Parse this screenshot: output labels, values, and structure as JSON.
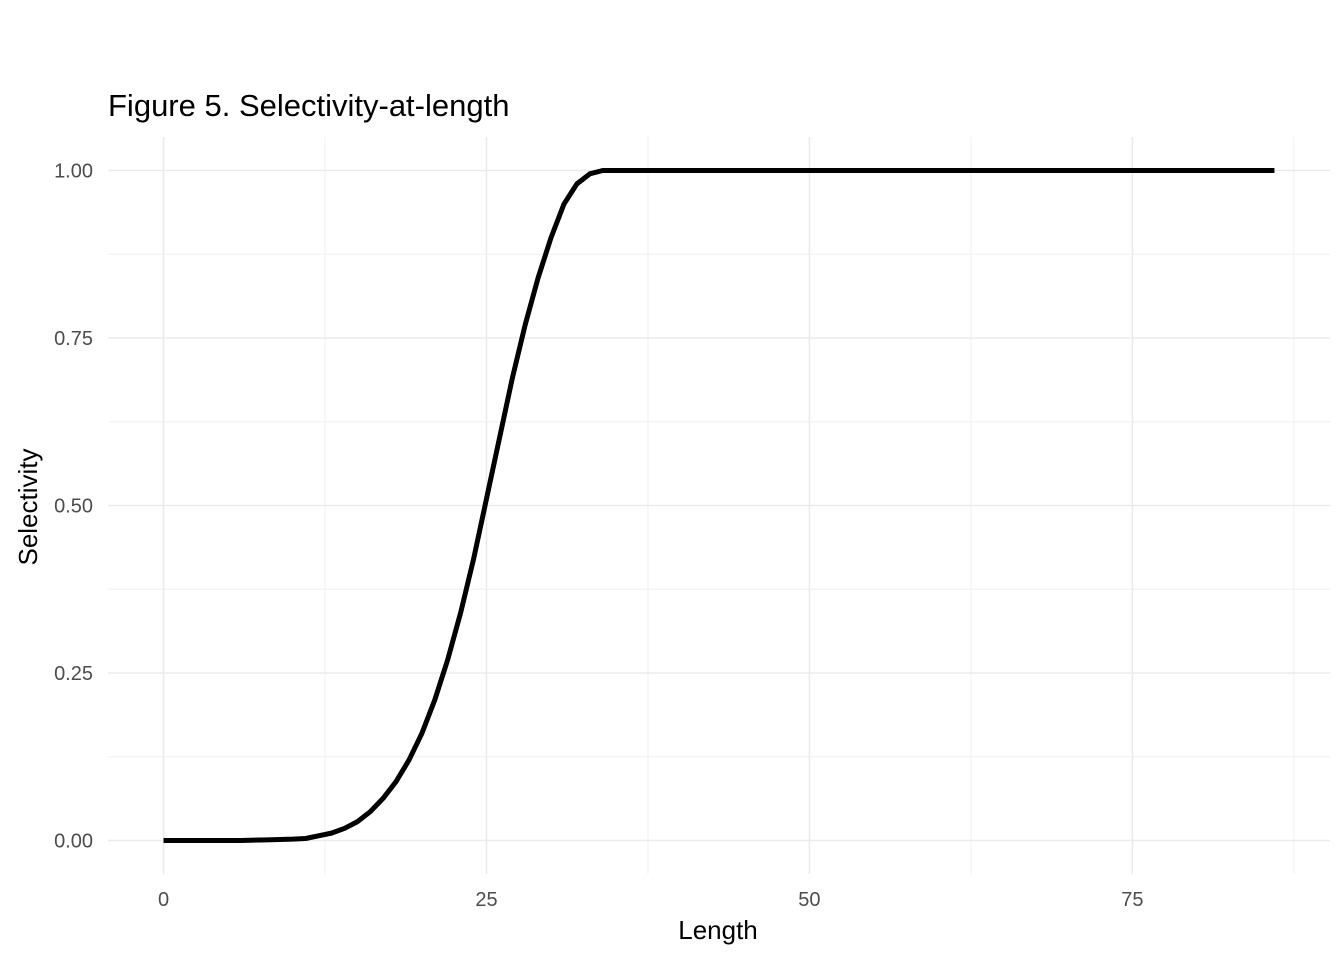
{
  "chart_data": {
    "type": "line",
    "title": "Figure 5. Selectivity-at-length",
    "xlabel": "Length",
    "ylabel": "Selectivity",
    "xlim": [
      -4.3,
      90.3
    ],
    "ylim": [
      -0.05,
      1.05
    ],
    "x_ticks": [
      0,
      25,
      50,
      75
    ],
    "x_tick_labels": [
      "0",
      "25",
      "50",
      "75"
    ],
    "x_minor_ticks": [
      12.5,
      37.5,
      62.5,
      87.5
    ],
    "y_ticks": [
      0,
      0.25,
      0.5,
      0.75,
      1
    ],
    "y_tick_labels": [
      "0.00",
      "0.25",
      "0.50",
      "0.75",
      "1.00"
    ],
    "y_minor_ticks": [
      0.125,
      0.375,
      0.625,
      0.875
    ],
    "grid": true,
    "legend": "none",
    "series": [
      {
        "color": "#000000",
        "x": [
          0,
          2,
          4,
          6,
          8,
          10,
          11,
          12,
          13,
          14,
          15,
          16,
          17,
          18,
          19,
          20,
          21,
          22,
          23,
          24,
          25,
          26,
          27,
          28,
          29,
          30,
          31,
          32,
          33,
          34,
          35,
          36,
          40,
          50,
          60,
          70,
          80,
          86
        ],
        "y": [
          0,
          0,
          0,
          0,
          0.001,
          0.002,
          0.003,
          0.007,
          0.011,
          0.018,
          0.028,
          0.043,
          0.063,
          0.088,
          0.12,
          0.16,
          0.21,
          0.27,
          0.34,
          0.42,
          0.51,
          0.6,
          0.69,
          0.77,
          0.84,
          0.9,
          0.95,
          0.98,
          0.995,
          1,
          1,
          1,
          1,
          1,
          1,
          1,
          1,
          1
        ]
      }
    ]
  }
}
